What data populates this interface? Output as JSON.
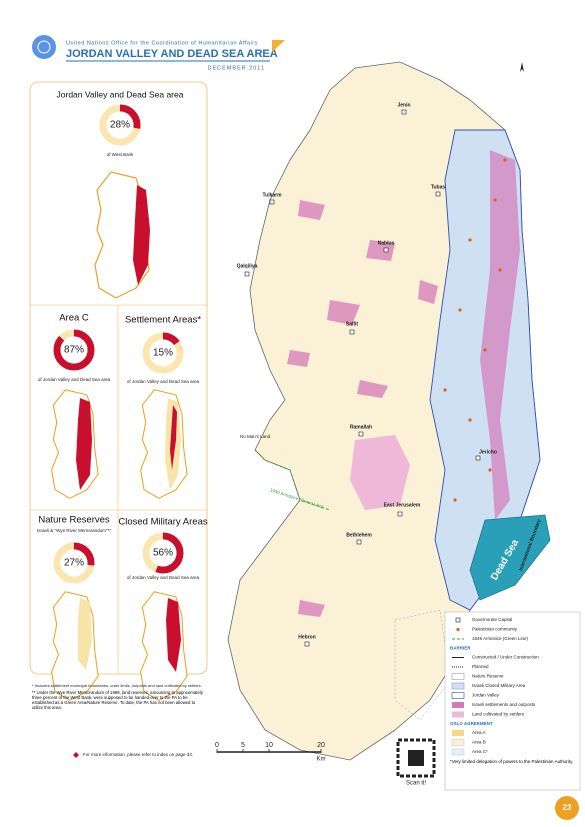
{
  "header": {
    "org": "United Nations Office for the Coordination of Humanitarian Affairs",
    "title": "JORDAN VALLEY AND DEAD SEA AREA",
    "date": "DECEMBER 2011"
  },
  "panels": [
    {
      "title": "Jordan Valley and Dead Sea area",
      "percent": {
        "value": 28,
        "label": "28%"
      },
      "caption": "of West Bank"
    },
    {
      "title": "Area C",
      "percent": {
        "value": 87,
        "label": "87%"
      },
      "caption": "of Jordan Valley and Dead Sea area"
    },
    {
      "title": "Settlement Areas*",
      "percent": {
        "value": 15,
        "label": "15%"
      },
      "caption": "of Jordan Valley and Dead Sea area"
    },
    {
      "title": "Nature Reserves",
      "subtitle": "Israeli & \"Wye River Memorandum\"**",
      "percent": {
        "value": 27,
        "label": "27%"
      }
    },
    {
      "title": "Closed Military Areas",
      "percent": {
        "value": 56,
        "label": "56%"
      },
      "caption": "of Jordan Valley and Dead Sea area"
    }
  ],
  "notes": [
    "* Includes settlement municipal boundaries, outer limits, outposts and land cultivated by settlers.",
    "** Under the Wye River Memorandum of 1998, land reserves, amounting to approximately three percent of the West Bank, were supposed to be handed over to the PA to be established as a Green Area/Nature Reserve. To date, the PA has not been allowed to utilize this area."
  ],
  "more_info": "For more information, please refer to index on page 33.",
  "map": {
    "places": [
      "Jenin",
      "Tubas",
      "Tulkarm",
      "Nablus",
      "Qalqiliya",
      "Salfit",
      "Ramallah",
      "Jericho",
      "East Jerusalem",
      "Bethlehem",
      "Hebron"
    ],
    "no_mans_land": "No Man's Land",
    "green_line": "1949 Armistice (Green Line)",
    "dead_sea": "Dead Sea",
    "boundary": "International Boundary"
  },
  "legend": {
    "items": [
      "Governorate Capital",
      "Palestinian community",
      "1949 Armistice (Green Line)"
    ],
    "barrier_heading": "BARRIER",
    "barrier": [
      "Constructed / Under Construction",
      "Planned"
    ],
    "areas": [
      "Nature Reserve",
      "Israeli Closed Military Area",
      "Jordan Valley",
      "Israeli settlements and outposts",
      "Land cultivated by settlers"
    ],
    "oslo_heading": "OSLO AGREEMENT",
    "oslo": [
      "Area A",
      "Area B",
      "Area C*"
    ],
    "note": "*Very limited delegation of powers to the Palestinian Authority"
  },
  "scale": {
    "ticks": [
      0,
      5,
      10,
      20
    ],
    "unit": "Km"
  },
  "qr": {
    "label": "Scan it!"
  },
  "page_number": "23"
}
